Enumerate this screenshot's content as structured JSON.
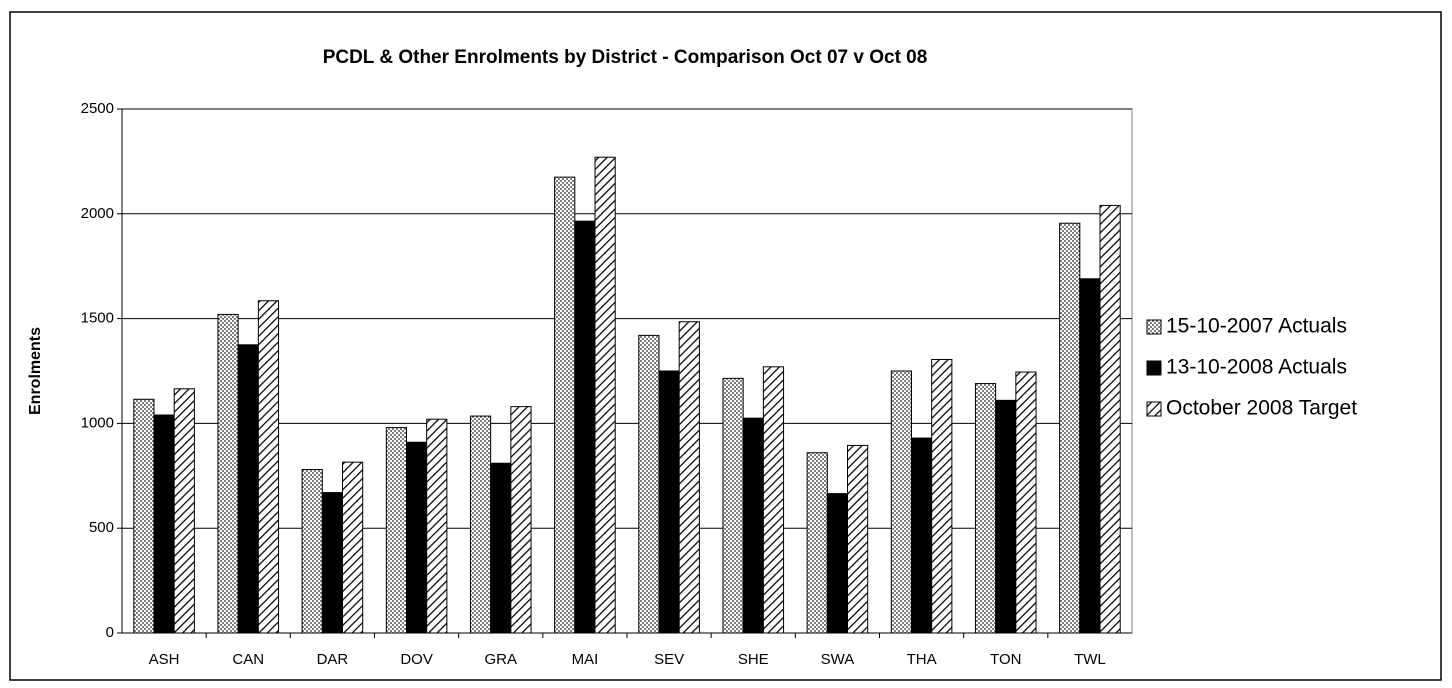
{
  "chart_data": {
    "type": "bar",
    "title": "PCDL & Other Enrolments by District - Comparison Oct 07 v Oct 08",
    "y_label": "Enrolments",
    "categories": [
      "ASH",
      "CAN",
      "DAR",
      "DOV",
      "GRA",
      "MAI",
      "SEV",
      "SHE",
      "SWA",
      "THA",
      "TON",
      "TWL"
    ],
    "series": [
      {
        "name": "15-10-2007 Actuals",
        "color": "#8c8c8c",
        "pattern": "dots",
        "values": [
          1115,
          1520,
          780,
          980,
          1035,
          2175,
          1420,
          1215,
          860,
          1250,
          1190,
          1955
        ]
      },
      {
        "name": "13-10-2008 Actuals",
        "color": "#000000",
        "pattern": "solid",
        "values": [
          1040,
          1375,
          670,
          910,
          810,
          1965,
          1250,
          1025,
          665,
          930,
          1110,
          1690
        ]
      },
      {
        "name": "October 2008 Target",
        "color": "#000000",
        "pattern": "hatch",
        "values": [
          1165,
          1585,
          815,
          1020,
          1080,
          2270,
          1485,
          1270,
          895,
          1305,
          1245,
          2040
        ]
      }
    ],
    "ylim": [
      0,
      2500
    ],
    "yticks": [
      0,
      500,
      1000,
      1500,
      2000,
      2500
    ],
    "grid": true,
    "legend": "right"
  }
}
